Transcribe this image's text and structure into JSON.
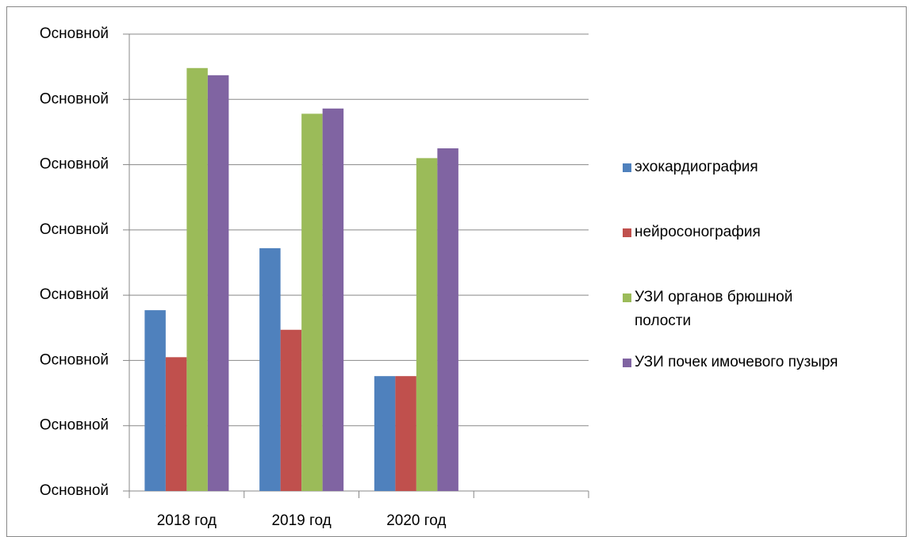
{
  "chart_data": {
    "type": "bar",
    "categories": [
      "2018 год",
      "2019 год",
      "2020 год",
      null
    ],
    "series": [
      {
        "name": "эхокардиография",
        "color": "#4f81bd",
        "values": [
          2.77,
          3.72,
          1.76,
          null
        ]
      },
      {
        "name": "нейросонография",
        "color": "#c0504d",
        "values": [
          2.05,
          2.47,
          1.76,
          null
        ]
      },
      {
        "name": "УЗИ органов брюшной полости",
        "color": "#9bbb59",
        "values": [
          6.48,
          5.78,
          5.1,
          null
        ]
      },
      {
        "name": "УЗИ почек имочевого пузыря",
        "color": "#8064a2",
        "values": [
          6.37,
          5.86,
          5.25,
          null
        ]
      }
    ],
    "ylim": [
      0,
      7
    ],
    "yticks": [
      {
        "value": 0,
        "label": "Основной"
      },
      {
        "value": 1,
        "label": "Основной"
      },
      {
        "value": 2,
        "label": "Основной"
      },
      {
        "value": 3,
        "label": "Основной"
      },
      {
        "value": 4,
        "label": "Основной"
      },
      {
        "value": 5,
        "label": "Основной"
      },
      {
        "value": 6,
        "label": "Основной"
      },
      {
        "value": 7,
        "label": "Основной"
      }
    ],
    "grid": true,
    "legend": "right"
  }
}
